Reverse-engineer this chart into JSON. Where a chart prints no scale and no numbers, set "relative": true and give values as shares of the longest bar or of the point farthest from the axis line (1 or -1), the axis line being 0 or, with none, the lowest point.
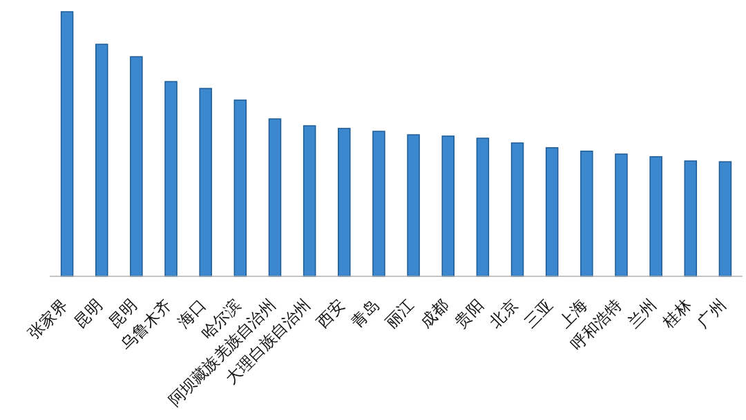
{
  "chart_data": {
    "type": "bar",
    "relative": true,
    "categories": [
      "张家界",
      "昆明",
      "昆明",
      "乌鲁木齐",
      "海口",
      "哈尔滨",
      "阿坝藏族羌族自治州",
      "大理白族自治州",
      "西安",
      "青岛",
      "丽江",
      "成都",
      "贵阳",
      "北京",
      "三亚",
      "上海",
      "呼和浩特",
      "兰州",
      "桂林",
      "广州"
    ],
    "values": [
      1,
      0.877,
      0.83,
      0.736,
      0.71,
      0.666,
      0.595,
      0.569,
      0.559,
      0.548,
      0.535,
      0.53,
      0.522,
      0.504,
      0.486,
      0.473,
      0.462,
      0.452,
      0.436,
      0.433
    ],
    "color": "#3b88cf"
  }
}
